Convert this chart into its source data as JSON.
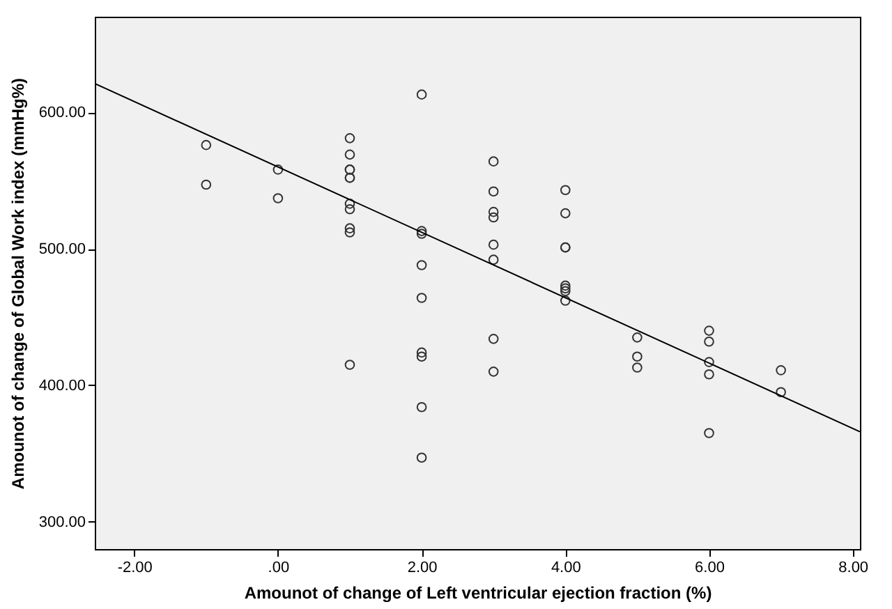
{
  "chart_data": {
    "type": "scatter",
    "xlabel": "Amounot of change of Left ventricular ejection fraction (%)",
    "ylabel": "Amounot of change of Global Work index (mmHg%)",
    "xlim": [
      -2.55,
      8.1
    ],
    "ylim": [
      280,
      670
    ],
    "xticks": [
      {
        "value": -2,
        "label": "-2.00"
      },
      {
        "value": 0,
        "label": ".00"
      },
      {
        "value": 2,
        "label": "2.00"
      },
      {
        "value": 4,
        "label": "4.00"
      },
      {
        "value": 6,
        "label": "6.00"
      },
      {
        "value": 8,
        "label": "8.00"
      }
    ],
    "yticks": [
      {
        "value": 300,
        "label": "300.00"
      },
      {
        "value": 400,
        "label": "400.00"
      },
      {
        "value": 500,
        "label": "500.00"
      },
      {
        "value": 600,
        "label": "600.00"
      }
    ],
    "grid": false,
    "series": [
      {
        "marker": "circle",
        "color": "#333333",
        "x": [
          -1,
          -1,
          0,
          0,
          1,
          1,
          1,
          1,
          1,
          1,
          1,
          1,
          1,
          1,
          1,
          2,
          2,
          2,
          2,
          2,
          2,
          2,
          2,
          2,
          3,
          3,
          3,
          3,
          3,
          3,
          3,
          3,
          4,
          4,
          4,
          4,
          4,
          4,
          4,
          4,
          5,
          5,
          5,
          6,
          6,
          6,
          6,
          6,
          7,
          7
        ],
        "values": [
          576,
          547,
          558,
          537,
          581,
          569,
          558,
          558,
          552,
          552,
          533,
          529,
          515,
          512,
          415,
          613,
          513,
          511,
          488,
          464,
          424,
          421,
          384,
          347,
          564,
          542,
          527,
          523,
          503,
          492,
          434,
          410,
          543,
          526,
          501,
          501,
          473,
          471,
          469,
          462,
          435,
          421,
          413,
          440,
          432,
          417,
          408,
          365,
          411,
          395
        ]
      },
      {
        "type": "line",
        "color": "#000000",
        "x": [
          -2.55,
          8.1
        ],
        "values": [
          621,
          366
        ]
      }
    ]
  }
}
